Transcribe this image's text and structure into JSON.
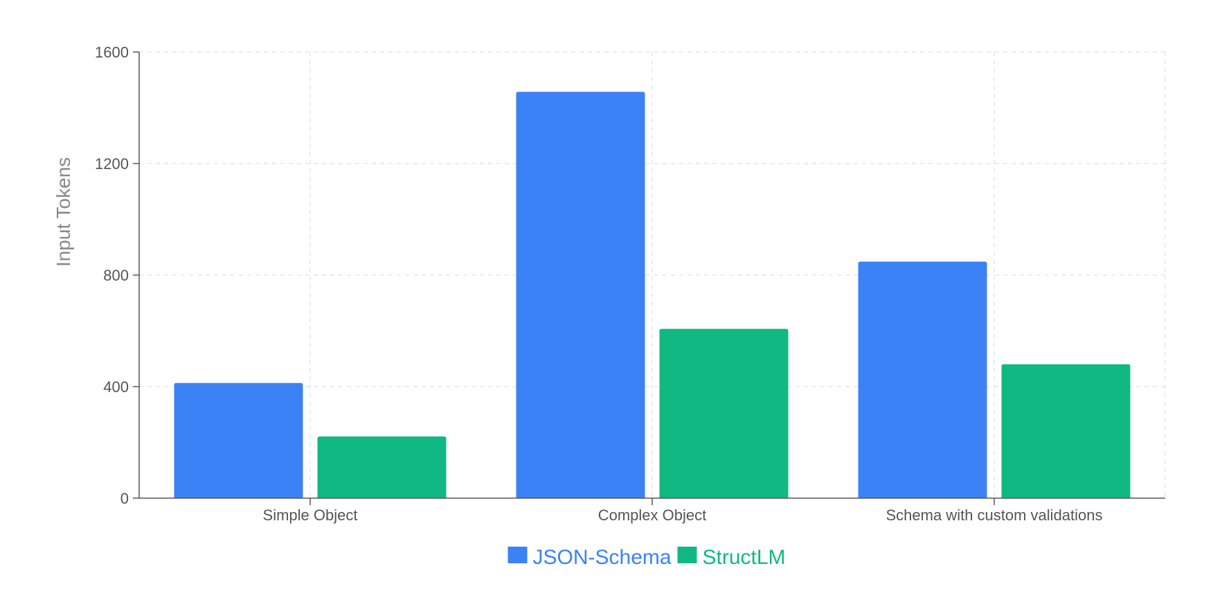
{
  "chart_data": {
    "type": "bar",
    "title": "",
    "xlabel": "",
    "ylabel": "Input Tokens",
    "categories": [
      "Simple Object",
      "Complex Object",
      "Schema with custom validations"
    ],
    "series": [
      {
        "name": "JSON-Schema",
        "color": "#3b82f6",
        "values": [
          413,
          1457,
          848
        ]
      },
      {
        "name": "StructLM",
        "color": "#10b981",
        "values": [
          221,
          607,
          480
        ]
      }
    ],
    "ylim": [
      0,
      1600
    ],
    "yticks": [
      0,
      400,
      800,
      1200,
      1600
    ],
    "grid": true,
    "legend_position": "bottom-center"
  }
}
